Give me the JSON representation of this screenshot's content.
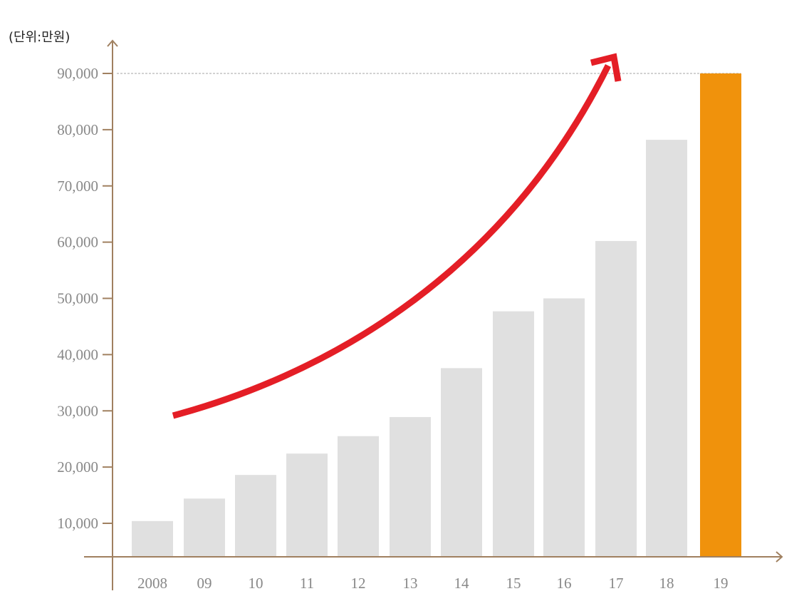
{
  "chart_data": {
    "type": "bar",
    "unit_label": "(단위:만원)",
    "categories": [
      "2008",
      "09",
      "10",
      "11",
      "12",
      "13",
      "14",
      "15",
      "16",
      "17",
      "18",
      "19"
    ],
    "values": [
      10400,
      14400,
      18600,
      22400,
      25500,
      28900,
      37600,
      47700,
      50000,
      60200,
      78200,
      90000
    ],
    "y_ticks": [
      {
        "value": 10000,
        "label": "10,000"
      },
      {
        "value": 20000,
        "label": "20,000"
      },
      {
        "value": 30000,
        "label": "30,000"
      },
      {
        "value": 40000,
        "label": "40,000"
      },
      {
        "value": 50000,
        "label": "50,000"
      },
      {
        "value": 60000,
        "label": "60,000"
      },
      {
        "value": 70000,
        "label": "70,000"
      },
      {
        "value": 80000,
        "label": "80,000"
      },
      {
        "value": 90000,
        "label": "90,000"
      }
    ],
    "ylim": [
      4000,
      90000
    ],
    "highlight_index": 11,
    "reference_line_value": 90000,
    "grid": false,
    "colors": {
      "bar": "#e0e0e0",
      "highlight_bar": "#f0920c",
      "axis": "#a08060",
      "trend_arrow": "#e41e26",
      "reference_line": "#888888"
    }
  }
}
